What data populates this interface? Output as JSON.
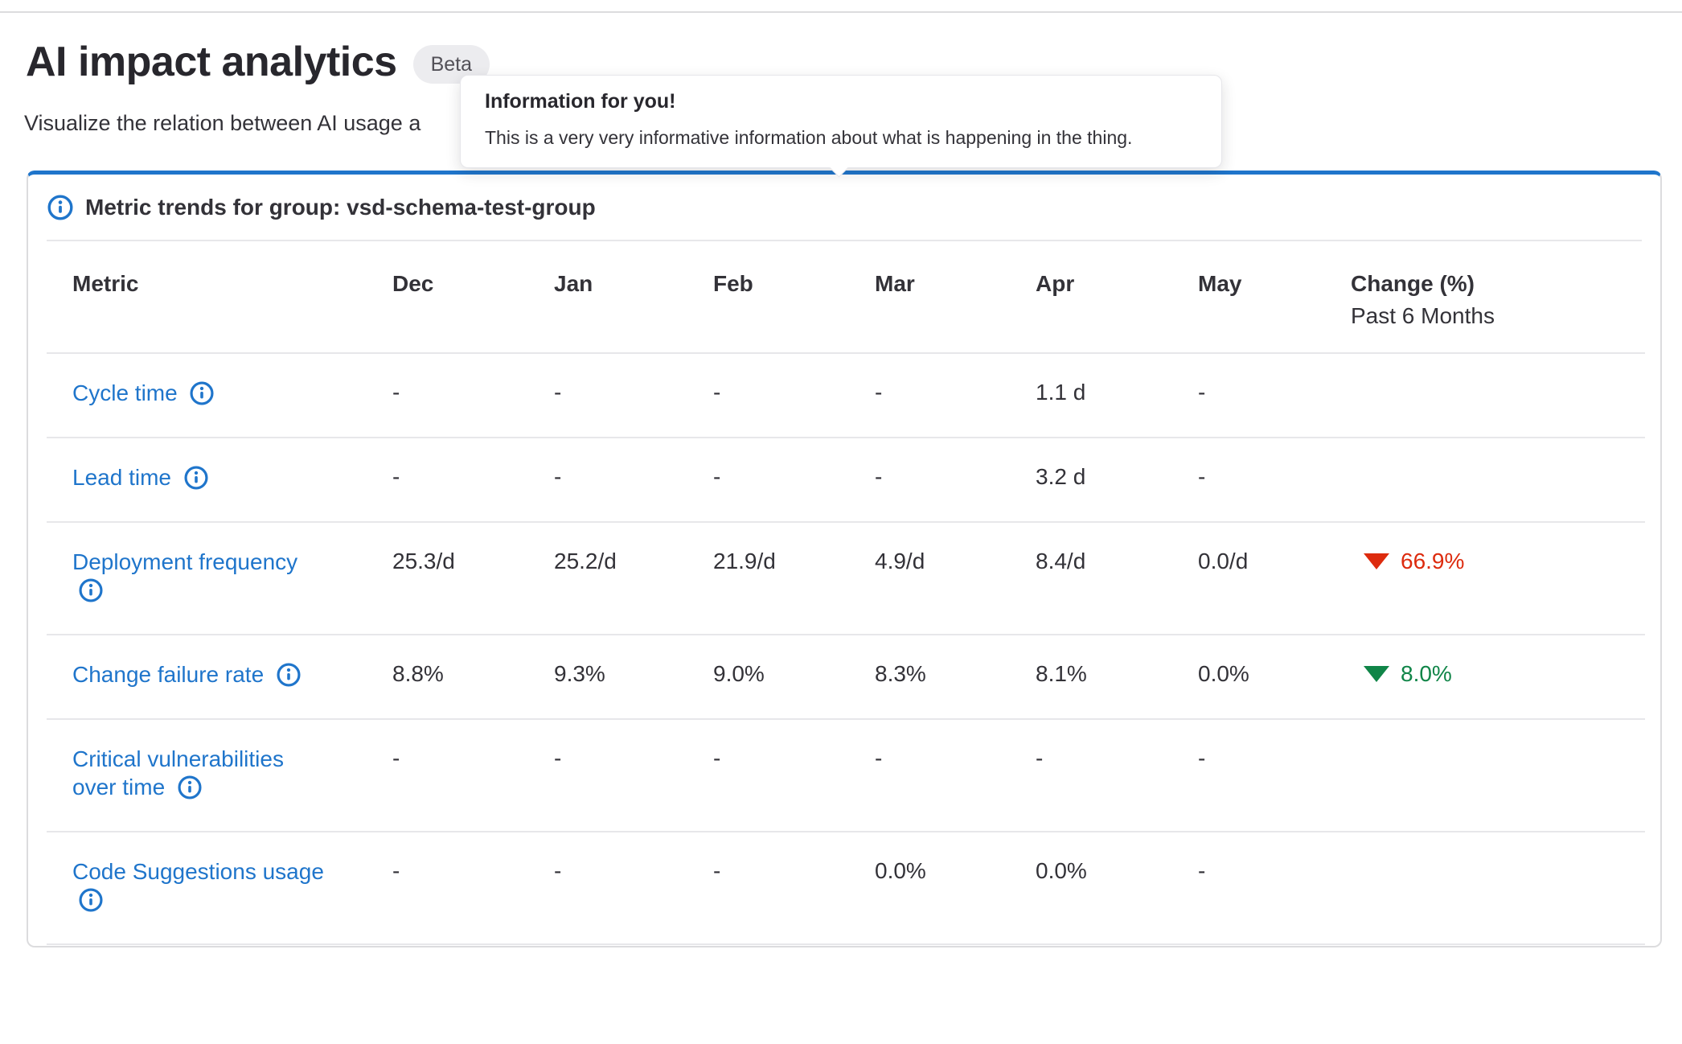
{
  "page": {
    "title": "AI impact analytics",
    "badge": "Beta",
    "subtitle": "Visualize the relation between AI usage a"
  },
  "tooltip": {
    "title": "Information for you!",
    "body": "This is a very very informative information about what is happening in the thing."
  },
  "card": {
    "title": "Metric trends for group: vsd-schema-test-group"
  },
  "table": {
    "columns": [
      "Metric",
      "Dec",
      "Jan",
      "Feb",
      "Mar",
      "Apr",
      "May"
    ],
    "change_header": {
      "line1": "Change (%)",
      "line2": "Past 6 Months"
    },
    "rows": [
      {
        "metric": "Cycle time",
        "metric_lines": [
          "Cycle time"
        ],
        "icon_inline": true,
        "values": [
          "-",
          "-",
          "-",
          "-",
          "1.1 d",
          "-"
        ],
        "change": null
      },
      {
        "metric": "Lead time",
        "metric_lines": [
          "Lead time"
        ],
        "icon_inline": true,
        "values": [
          "-",
          "-",
          "-",
          "-",
          "3.2 d",
          "-"
        ],
        "change": null
      },
      {
        "metric": "Deployment frequency",
        "metric_lines": [
          "Deployment frequency"
        ],
        "icon_inline": false,
        "values": [
          "25.3/d",
          "25.2/d",
          "21.9/d",
          "4.9/d",
          "8.4/d",
          "0.0/d"
        ],
        "change": {
          "direction": "down",
          "value": "66.9%",
          "color": "#dd2b0e"
        }
      },
      {
        "metric": "Change failure rate",
        "metric_lines": [
          "Change failure rate"
        ],
        "icon_inline": true,
        "values": [
          "8.8%",
          "9.3%",
          "9.0%",
          "8.3%",
          "8.1%",
          "0.0%"
        ],
        "change": {
          "direction": "down",
          "value": "8.0%",
          "color": "#108548"
        }
      },
      {
        "metric": "Critical vulnerabilities over time",
        "metric_lines": [
          "Critical vulnerabilities",
          "over time"
        ],
        "icon_inline": true,
        "values": [
          "-",
          "-",
          "-",
          "-",
          "-",
          "-"
        ],
        "change": null
      },
      {
        "metric": "Code Suggestions usage",
        "metric_lines": [
          "Code Suggestions usage"
        ],
        "icon_inline": false,
        "values": [
          "-",
          "-",
          "-",
          "0.0%",
          "0.0%",
          "-"
        ],
        "change": null
      }
    ]
  },
  "colors": {
    "accent_blue": "#1f75cb",
    "link_blue": "#1f75cb",
    "negative_red": "#dd2b0e",
    "positive_green": "#108548"
  }
}
